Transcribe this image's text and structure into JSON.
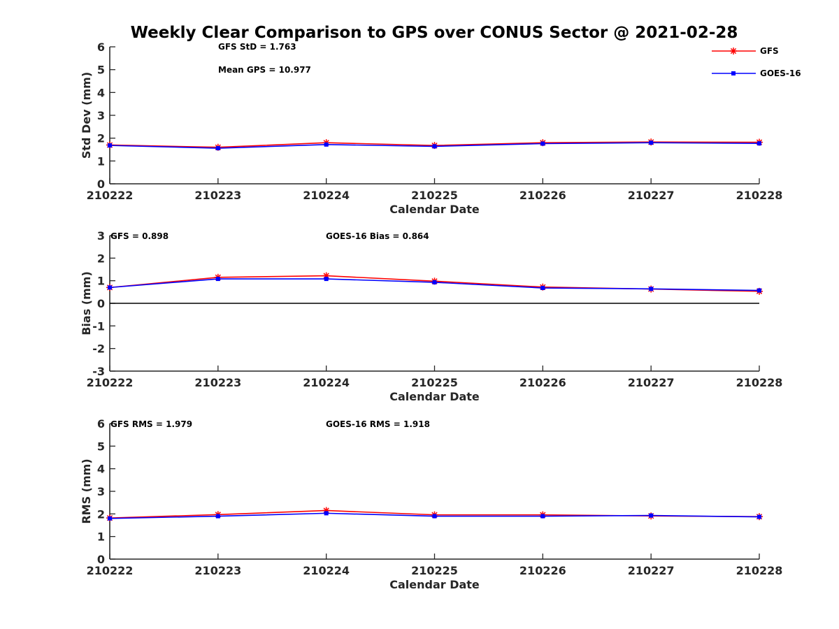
{
  "figure": {
    "title": "Weekly Clear Comparison to GPS over CONUS Sector @ 2021-02-28"
  },
  "colors": {
    "gfs": "#ff0000",
    "goes16": "#0000ff",
    "axis": "#262626"
  },
  "legend": {
    "placement": "top-right",
    "entries": [
      {
        "name": "GFS",
        "marker": "asterisk",
        "color": "#ff0000"
      },
      {
        "name": "GOES-16",
        "marker": "square",
        "color": "#0000ff"
      }
    ]
  },
  "chart_data": [
    {
      "type": "line",
      "xlabel": "Calendar Date",
      "ylabel": "Std Dev (mm)",
      "ylim": [
        0,
        6
      ],
      "yticks": [
        "0",
        "1",
        "2",
        "3",
        "4",
        "5",
        "6"
      ],
      "categories": [
        "210222",
        "210223",
        "210224",
        "210225",
        "210226",
        "210227",
        "210228"
      ],
      "grid": false,
      "series": [
        {
          "name": "GFS",
          "values": [
            1.7,
            1.6,
            1.8,
            1.68,
            1.8,
            1.83,
            1.82
          ]
        },
        {
          "name": "GOES-16",
          "values": [
            1.68,
            1.56,
            1.72,
            1.64,
            1.76,
            1.8,
            1.77
          ]
        }
      ],
      "annotations": [
        "GFS StD = 1.763",
        "Mean GPS = 10.977"
      ]
    },
    {
      "type": "line",
      "xlabel": "Calendar Date",
      "ylabel": "Bias (mm)",
      "ylim": [
        -3,
        3
      ],
      "yticks": [
        "-3",
        "-2",
        "-1",
        "0",
        "1",
        "2",
        "3"
      ],
      "categories": [
        "210222",
        "210223",
        "210224",
        "210225",
        "210226",
        "210227",
        "210228"
      ],
      "grid": false,
      "zero_line": true,
      "series": [
        {
          "name": "GFS",
          "values": [
            0.7,
            1.15,
            1.22,
            0.98,
            0.72,
            0.63,
            0.53
          ]
        },
        {
          "name": "GOES-16",
          "values": [
            0.7,
            1.08,
            1.08,
            0.93,
            0.68,
            0.64,
            0.57
          ]
        }
      ],
      "annotations": [
        "GFS = 0.898",
        "GOES-16 Bias  = 0.864"
      ]
    },
    {
      "type": "line",
      "xlabel": "Calendar Date",
      "ylabel": "RMS (mm)",
      "ylim": [
        0,
        6
      ],
      "yticks": [
        "0",
        "1",
        "2",
        "3",
        "4",
        "5",
        "6"
      ],
      "categories": [
        "210222",
        "210223",
        "210224",
        "210225",
        "210226",
        "210227",
        "210228"
      ],
      "grid": false,
      "series": [
        {
          "name": "GFS",
          "values": [
            1.82,
            1.97,
            2.15,
            1.96,
            1.96,
            1.91,
            1.88
          ]
        },
        {
          "name": "GOES-16",
          "values": [
            1.8,
            1.9,
            2.03,
            1.9,
            1.9,
            1.93,
            1.87
          ]
        }
      ],
      "annotations": [
        "GFS RMS = 1.979",
        "GOES-16 RMS = 1.918"
      ]
    }
  ]
}
